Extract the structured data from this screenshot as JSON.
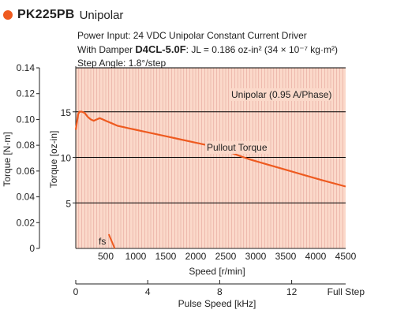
{
  "header": {
    "model": "PK225PB",
    "subtitle": "Unipolar",
    "line1": "Power Input: 24 VDC    Unipolar Constant Current Driver",
    "line2_prefix": "With Damper ",
    "line2_damper": "D4CL-5.0F",
    "line2_suffix": ": JL = 0.186 oz-in² (34 × 10⁻⁷ kg·m²)",
    "line3": "Step Angle: 1.8°/step"
  },
  "colors": {
    "accent": "#ee5a1f",
    "plot_bg": "#fbd9ca",
    "curve": "#ee5a1f",
    "grid": "#000000"
  },
  "chart_data": {
    "type": "line",
    "annotations": [
      "Unipolar (0.95 A/Phase)",
      "Pullout Torque",
      "fs"
    ],
    "x_primary": {
      "label": "Speed [r/min]",
      "ticks": [
        "500",
        "1000",
        "1500",
        "2000",
        "2500",
        "3000",
        "3500",
        "4000",
        "4500"
      ],
      "range": [
        0,
        4500
      ]
    },
    "x_secondary": {
      "label": "Pulse Speed [kHz]",
      "ticks": [
        "0",
        "4",
        "8",
        "12"
      ],
      "note": "Full Step",
      "range": [
        0,
        15
      ]
    },
    "y_left": {
      "label": "Torque [N·m]",
      "ticks": [
        "0",
        "0.02",
        "0.04",
        "0.06",
        "0.08",
        "0.10",
        "0.12",
        "0.14"
      ],
      "range": [
        0,
        0.14
      ]
    },
    "y_right": {
      "label": "Torque [oz-in]",
      "ticks": [
        "5",
        "10",
        "15"
      ],
      "range": [
        0,
        19.83
      ]
    },
    "grid": true,
    "series": [
      {
        "name": "Pullout Torque",
        "x": [
          0,
          20,
          40,
          60,
          80,
          100,
          150,
          200,
          250,
          300,
          350,
          400,
          450,
          500,
          600,
          700,
          800,
          900,
          1000,
          1100,
          1200,
          1300,
          1500,
          1700,
          2000,
          2300,
          2600,
          2900,
          3200,
          3500,
          3800,
          4100,
          4500
        ],
        "y": [
          0.092,
          0.098,
          0.104,
          0.106,
          0.106,
          0.106,
          0.105,
          0.102,
          0.1,
          0.099,
          0.1,
          0.101,
          0.1,
          0.099,
          0.097,
          0.095,
          0.094,
          0.093,
          0.092,
          0.091,
          0.09,
          0.089,
          0.087,
          0.085,
          0.082,
          0.079,
          0.074,
          0.069,
          0.065,
          0.061,
          0.057,
          0.053,
          0.048
        ]
      },
      {
        "name": "fs",
        "x": [
          550,
          650
        ],
        "y": [
          0.011,
          0.0
        ]
      }
    ]
  }
}
